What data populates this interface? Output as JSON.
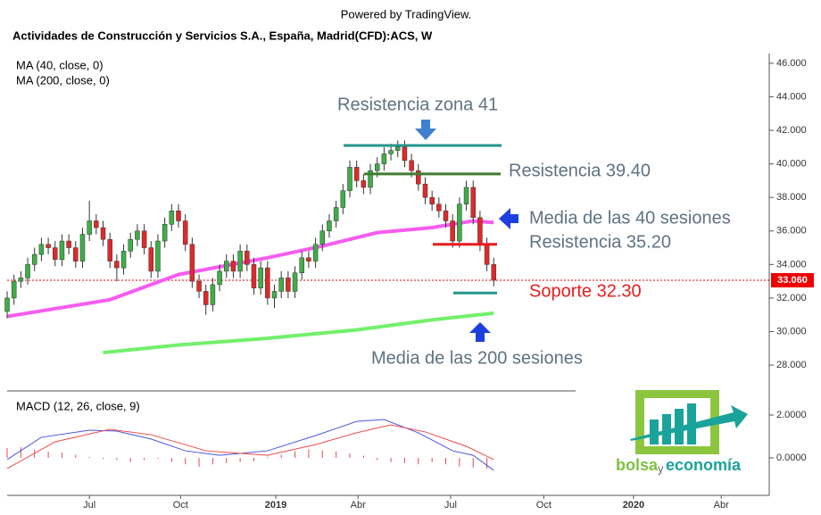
{
  "chart_data": {
    "type": "candlestick",
    "powered_by": "Powered by TradingView.",
    "title": "Actividades de Construcción y Servicios S.A., España, Madrid(CFD):ACS, W",
    "indicator_labels": [
      "MA (40, close, 0)",
      "MA (200, close, 0)"
    ],
    "up_color": "#3fae49",
    "down_color": "#e0292a",
    "open": [
      31.2,
      32.0,
      33.0,
      33.2,
      34.0,
      34.6,
      35.2,
      35.0,
      34.3,
      35.4,
      35.0,
      34.2,
      35.8,
      36.6,
      36.2,
      35.5,
      34.2,
      33.8,
      34.8,
      35.5,
      36.0,
      35.0,
      33.6,
      35.4,
      36.4,
      37.2,
      36.6,
      35.2,
      33.0,
      32.4,
      31.6,
      32.8,
      33.6,
      34.2,
      33.6,
      34.8,
      34.0,
      32.6,
      33.8,
      32.0,
      32.4,
      33.2,
      32.4,
      33.5,
      34.4,
      34.2,
      35.2,
      36.0,
      36.6,
      37.4,
      38.4,
      39.8,
      39.0,
      38.6,
      39.6,
      40.0,
      40.6,
      40.8,
      41.0,
      40.2,
      39.6,
      38.8,
      38.0,
      37.6,
      37.2,
      36.6,
      35.4,
      37.6,
      38.6,
      36.8,
      35.2,
      34.0
    ],
    "high": [
      32.4,
      33.4,
      33.6,
      34.4,
      35.0,
      35.6,
      35.6,
      35.4,
      35.8,
      35.8,
      35.4,
      36.2,
      37.8,
      37.0,
      36.6,
      35.9,
      34.6,
      35.2,
      35.9,
      36.4,
      36.4,
      35.4,
      35.8,
      36.8,
      37.6,
      37.6,
      37.0,
      35.6,
      33.4,
      32.8,
      33.2,
      34.0,
      34.6,
      34.6,
      35.2,
      35.2,
      34.4,
      34.2,
      34.2,
      32.8,
      33.6,
      33.6,
      33.9,
      34.8,
      34.8,
      35.6,
      36.4,
      37.0,
      37.8,
      38.8,
      40.2,
      40.2,
      39.4,
      40.0,
      40.4,
      41.0,
      41.2,
      41.4,
      41.4,
      40.6,
      40.0,
      39.2,
      38.4,
      38.0,
      37.6,
      37.0,
      38.0,
      39.0,
      39.0,
      37.2,
      35.6,
      34.4
    ],
    "low": [
      30.8,
      31.6,
      32.6,
      32.8,
      33.6,
      34.2,
      34.6,
      33.9,
      33.9,
      34.6,
      33.8,
      33.8,
      35.4,
      35.8,
      35.1,
      33.8,
      33.0,
      33.4,
      34.4,
      35.1,
      34.6,
      33.2,
      33.2,
      35.0,
      36.0,
      36.2,
      34.8,
      32.6,
      32.0,
      31.0,
      31.2,
      32.4,
      33.2,
      33.2,
      33.2,
      33.6,
      32.2,
      32.2,
      31.6,
      31.4,
      32.0,
      32.0,
      32.0,
      33.1,
      33.8,
      33.8,
      34.8,
      35.6,
      36.2,
      37.0,
      38.0,
      38.6,
      38.2,
      38.2,
      39.2,
      39.6,
      40.2,
      40.4,
      39.8,
      39.2,
      38.4,
      37.6,
      37.2,
      36.8,
      36.2,
      35.0,
      35.0,
      37.2,
      36.4,
      34.8,
      33.6,
      32.7
    ],
    "close": [
      32.0,
      33.0,
      33.2,
      34.0,
      34.6,
      35.2,
      35.0,
      34.3,
      35.4,
      35.0,
      34.2,
      35.8,
      36.6,
      36.2,
      35.5,
      34.2,
      33.8,
      34.8,
      35.5,
      36.0,
      35.0,
      33.6,
      35.4,
      36.4,
      37.2,
      36.6,
      35.2,
      33.0,
      32.4,
      31.6,
      32.8,
      33.6,
      34.2,
      33.6,
      34.8,
      34.0,
      32.6,
      33.8,
      32.0,
      32.4,
      33.2,
      32.4,
      33.5,
      34.4,
      34.2,
      35.2,
      36.0,
      36.6,
      37.4,
      38.4,
      39.8,
      39.0,
      38.6,
      39.6,
      40.0,
      40.6,
      40.8,
      41.0,
      40.2,
      39.6,
      38.8,
      38.0,
      37.6,
      37.2,
      36.6,
      35.4,
      37.6,
      38.6,
      36.8,
      35.2,
      34.0,
      33.06
    ],
    "moving_averages": [
      {
        "color": "#f65cf0",
        "x": [
          0,
          15,
          25,
          38,
          46,
          54,
          62,
          68,
          71
        ],
        "values": [
          30.9,
          31.9,
          33.4,
          34.4,
          35.1,
          35.9,
          36.2,
          36.6,
          36.5
        ]
      },
      {
        "color": "#73f06b",
        "x": [
          14,
          25,
          38,
          51,
          62,
          71
        ],
        "values": [
          28.75,
          29.2,
          29.6,
          30.1,
          30.7,
          31.1
        ]
      }
    ],
    "xlim": [
      0,
      111.2
    ],
    "xticks": [
      {
        "value": 12.0,
        "label": "Jul"
      },
      {
        "value": 25.3,
        "label": "Oct"
      },
      {
        "value": 39.2,
        "label": "2019"
      },
      {
        "value": 51.2,
        "label": "Abr"
      },
      {
        "value": 64.7,
        "label": "Jul"
      },
      {
        "value": 78.3,
        "label": "Oct"
      },
      {
        "value": 91.4,
        "label": "2020"
      },
      {
        "value": 104.2,
        "label": "Abr"
      }
    ],
    "ylim": [
      26.46,
      46.58
    ],
    "yticks": [
      {
        "value": 28,
        "label": "28.000"
      },
      {
        "value": 30,
        "label": "30.000"
      },
      {
        "value": 32,
        "label": "32.000"
      },
      {
        "value": 34,
        "label": "34.000"
      },
      {
        "value": 36,
        "label": "36.000"
      },
      {
        "value": 38,
        "label": "38.000"
      },
      {
        "value": 40,
        "label": "40.000"
      },
      {
        "value": 42,
        "label": "42.000"
      },
      {
        "value": 44,
        "label": "44.000"
      },
      {
        "value": 46,
        "label": "46.000"
      }
    ],
    "last_price": {
      "value": 33.06,
      "label": "33.060"
    },
    "levels": [
      {
        "value": 41.1,
        "color": "#23968a"
      },
      {
        "value": 39.4,
        "color": "#3f7d2f"
      },
      {
        "value": 35.2,
        "color": "#e81c1c"
      },
      {
        "value": 32.3,
        "color": "#23968a"
      }
    ],
    "annotations": [
      "Resistencia zona 41",
      "Resistencia 39.40",
      "Media de las 40 sesiones",
      "Resistencia 35.20",
      "Soporte 32.30",
      "Media de las 200 sesiones"
    ],
    "macd": {
      "label": "MACD (12, 26, close, 9)",
      "ylim": [
        -1.75,
        3.04
      ],
      "yticks": [
        {
          "value": 0,
          "label": "0.0000"
        },
        {
          "value": 2,
          "label": "2.0000"
        }
      ],
      "macd_line": {
        "color": "#4a55e0",
        "x": [
          0,
          5,
          12,
          16,
          21,
          26,
          31,
          38,
          45,
          51,
          55,
          60,
          65,
          68,
          71
        ],
        "values": [
          -0.08,
          0.96,
          1.29,
          1.25,
          0.88,
          0.33,
          0.12,
          0.33,
          1.04,
          1.7,
          1.79,
          1.17,
          0.33,
          0.12,
          -0.58
        ]
      },
      "signal_line": {
        "color": "#f04a4a",
        "x": [
          0,
          7,
          15,
          21,
          29,
          38,
          45,
          51,
          56,
          61,
          67,
          71
        ],
        "values": [
          -0.5,
          0.75,
          1.33,
          1.08,
          0.33,
          0.12,
          0.62,
          1.17,
          1.54,
          1.21,
          0.54,
          -0.08
        ]
      },
      "histogram": {
        "color": "#e04a55",
        "x": [
          0,
          2,
          4,
          6,
          8,
          10,
          12,
          14,
          16,
          18,
          20,
          22,
          24,
          26,
          28,
          30,
          32,
          34,
          36,
          38,
          40,
          42,
          44,
          46,
          48,
          50,
          52,
          54,
          56,
          58,
          60,
          62,
          64,
          66,
          68,
          70
        ],
        "values": [
          0.45,
          0.5,
          0.4,
          0.3,
          0.25,
          0.15,
          0.05,
          -0.05,
          -0.1,
          -0.2,
          -0.1,
          -0.05,
          -0.2,
          -0.3,
          -0.4,
          -0.3,
          -0.25,
          -0.2,
          -0.15,
          0.05,
          0.15,
          0.3,
          0.4,
          0.35,
          0.3,
          0.2,
          0.1,
          -0.1,
          -0.2,
          -0.25,
          -0.3,
          -0.2,
          -0.3,
          -0.4,
          -0.45,
          -0.5
        ]
      }
    },
    "logo": [
      "bolsa",
      "y",
      "economía"
    ]
  }
}
